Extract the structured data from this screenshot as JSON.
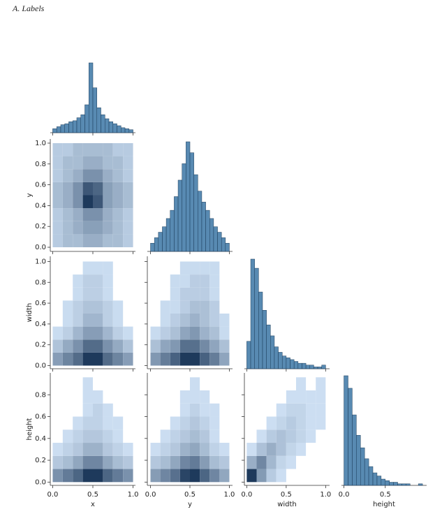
{
  "title": "A.   Labels",
  "chart_data": {
    "type": "pairplot",
    "variables": [
      {
        "label": "x",
        "lim": [
          -0.03,
          1.03
        ],
        "xticks": [
          {
            "value": 0,
            "label": "0.0"
          },
          0.5,
          {
            "value": 1,
            "label": "1.0"
          }
        ],
        "hist": {
          "bins": [
            0,
            0.05,
            0.1,
            0.15,
            0.2,
            0.25,
            0.3,
            0.35,
            0.4,
            0.45,
            0.5,
            0.55,
            0.6,
            0.65,
            0.7,
            0.75,
            0.8,
            0.85,
            0.9,
            0.95,
            1.0
          ],
          "counts": [
            4,
            6,
            8,
            9,
            11,
            12,
            15,
            18,
            28,
            70,
            45,
            25,
            18,
            14,
            11,
            9,
            7,
            5,
            4,
            3
          ]
        },
        "grid": [
          0,
          0.125,
          0.25,
          0.375,
          0.5,
          0.625,
          0.75,
          0.875,
          1.0
        ]
      },
      {
        "label": "y",
        "lim": [
          -0.04,
          1.04
        ],
        "xticks": [
          {
            "value": 0,
            "label": "0.0"
          },
          0.5,
          {
            "value": 1,
            "label": "1.0"
          }
        ],
        "yticks": [
          {
            "value": 0,
            "label": "0.0"
          },
          0.2,
          0.4,
          0.6,
          0.8,
          {
            "value": 1,
            "label": "1.0"
          }
        ],
        "hist": {
          "bins": [
            0,
            0.05,
            0.1,
            0.15,
            0.2,
            0.25,
            0.3,
            0.35,
            0.4,
            0.45,
            0.5,
            0.55,
            0.6,
            0.65,
            0.7,
            0.75,
            0.8,
            0.85,
            0.9,
            0.95,
            1.0
          ],
          "counts": [
            3,
            5,
            7,
            9,
            12,
            15,
            20,
            26,
            32,
            40,
            36,
            28,
            22,
            18,
            15,
            12,
            9,
            7,
            5,
            3
          ]
        },
        "grid": [
          0,
          0.125,
          0.25,
          0.375,
          0.5,
          0.625,
          0.75,
          0.875,
          1.0
        ]
      },
      {
        "label": "width",
        "lim": [
          -0.03,
          1.05
        ],
        "xticks": [
          {
            "value": 0,
            "label": "0.0"
          },
          0.5,
          {
            "value": 1,
            "label": "1.0"
          }
        ],
        "yticks": [
          {
            "value": 0,
            "label": "0.0"
          },
          0.2,
          0.4,
          0.6,
          0.8,
          {
            "value": 1,
            "label": "1.0"
          }
        ],
        "hist": {
          "bins": [
            0,
            0.05,
            0.1,
            0.15,
            0.2,
            0.25,
            0.3,
            0.35,
            0.4,
            0.45,
            0.5,
            0.55,
            0.6,
            0.65,
            0.7,
            0.75,
            0.8,
            0.85,
            0.9,
            0.95,
            1.0
          ],
          "counts": [
            15,
            60,
            55,
            42,
            32,
            24,
            18,
            12,
            9,
            7,
            6,
            5,
            4,
            3,
            3,
            2,
            2,
            1,
            1,
            2
          ]
        },
        "grid": [
          0,
          0.125,
          0.25,
          0.375,
          0.5,
          0.625,
          0.75,
          0.875,
          1.0
        ]
      },
      {
        "label": "height",
        "lim": [
          -0.03,
          1.0
        ],
        "xticks": [
          {
            "value": 0,
            "label": "0.0"
          },
          0.5
        ],
        "yticks": [
          {
            "value": 0,
            "label": "0.0"
          },
          0.2,
          0.4,
          0.6,
          0.8
        ],
        "hist": {
          "bins": [
            0,
            0.05,
            0.1,
            0.15,
            0.2,
            0.25,
            0.3,
            0.35,
            0.4,
            0.45,
            0.5,
            0.55,
            0.6,
            0.65,
            0.7,
            0.75,
            0.8,
            0.85,
            0.9,
            0.95
          ],
          "counts": [
            70,
            62,
            45,
            32,
            24,
            17,
            12,
            8,
            6,
            4,
            3,
            2,
            2,
            1,
            1,
            1,
            0,
            0,
            1
          ]
        },
        "grid": [
          0,
          0.12,
          0.24,
          0.36,
          0.48,
          0.6,
          0.72,
          0.84,
          0.96
        ]
      }
    ],
    "pairs": [
      {
        "xvar": "x",
        "yvar": "y",
        "counts": [
          [
            2,
            3,
            3,
            4,
            4,
            3,
            3,
            2
          ],
          [
            2,
            3,
            4,
            5,
            5,
            4,
            3,
            2
          ],
          [
            2,
            3,
            4,
            6,
            6,
            4,
            3,
            2
          ],
          [
            3,
            4,
            6,
            12,
            10,
            5,
            4,
            3
          ],
          [
            3,
            4,
            6,
            10,
            9,
            5,
            4,
            3
          ],
          [
            2,
            3,
            4,
            6,
            6,
            4,
            3,
            2
          ],
          [
            2,
            3,
            3,
            4,
            4,
            3,
            3,
            2
          ],
          [
            2,
            2,
            3,
            3,
            3,
            3,
            2,
            2
          ]
        ]
      },
      {
        "xvar": "x",
        "yvar": "width",
        "counts": [
          [
            6,
            8,
            10,
            14,
            14,
            10,
            8,
            6
          ],
          [
            3,
            5,
            7,
            10,
            10,
            7,
            5,
            3
          ],
          [
            1,
            2,
            4,
            6,
            6,
            4,
            2,
            1
          ],
          [
            0,
            1,
            2,
            4,
            4,
            2,
            1,
            0
          ],
          [
            0,
            1,
            2,
            3,
            3,
            2,
            1,
            0
          ],
          [
            0,
            0,
            1,
            2,
            2,
            1,
            0,
            0
          ],
          [
            0,
            0,
            1,
            2,
            2,
            1,
            0,
            0
          ],
          [
            0,
            0,
            0,
            1,
            1,
            1,
            0,
            0
          ]
        ]
      },
      {
        "xvar": "y",
        "yvar": "width",
        "counts": [
          [
            6,
            8,
            10,
            13,
            13,
            10,
            8,
            5
          ],
          [
            3,
            5,
            6,
            9,
            9,
            7,
            5,
            3
          ],
          [
            1,
            2,
            3,
            5,
            6,
            4,
            3,
            1
          ],
          [
            0,
            1,
            2,
            3,
            4,
            3,
            2,
            1
          ],
          [
            0,
            1,
            1,
            2,
            3,
            3,
            2,
            0
          ],
          [
            0,
            0,
            1,
            2,
            2,
            2,
            1,
            0
          ],
          [
            0,
            0,
            1,
            1,
            2,
            2,
            1,
            0
          ],
          [
            0,
            0,
            0,
            1,
            1,
            1,
            1,
            0
          ]
        ]
      },
      {
        "xvar": "x",
        "yvar": "height",
        "counts": [
          [
            8,
            10,
            12,
            16,
            16,
            12,
            10,
            8
          ],
          [
            3,
            4,
            6,
            9,
            9,
            6,
            4,
            3
          ],
          [
            1,
            2,
            3,
            5,
            5,
            3,
            2,
            1
          ],
          [
            0,
            1,
            2,
            3,
            3,
            2,
            1,
            0
          ],
          [
            0,
            0,
            1,
            2,
            2,
            1,
            1,
            0
          ],
          [
            0,
            0,
            0,
            1,
            2,
            1,
            0,
            0
          ],
          [
            0,
            0,
            0,
            1,
            1,
            0,
            0,
            0
          ],
          [
            0,
            0,
            0,
            1,
            0,
            0,
            0,
            0
          ]
        ]
      },
      {
        "xvar": "y",
        "yvar": "height",
        "counts": [
          [
            7,
            9,
            11,
            15,
            16,
            12,
            9,
            6
          ],
          [
            3,
            4,
            6,
            9,
            10,
            7,
            4,
            3
          ],
          [
            1,
            2,
            3,
            5,
            6,
            4,
            2,
            1
          ],
          [
            0,
            1,
            2,
            3,
            4,
            3,
            1,
            0
          ],
          [
            0,
            0,
            1,
            2,
            3,
            2,
            1,
            0
          ],
          [
            0,
            0,
            0,
            1,
            2,
            1,
            1,
            0
          ],
          [
            0,
            0,
            0,
            1,
            1,
            1,
            0,
            0
          ],
          [
            0,
            0,
            0,
            0,
            1,
            0,
            0,
            0
          ]
        ]
      },
      {
        "xvar": "width",
        "yvar": "height",
        "counts": [
          [
            18,
            8,
            3,
            1,
            0,
            0,
            0,
            0
          ],
          [
            6,
            10,
            5,
            2,
            1,
            0,
            0,
            0
          ],
          [
            1,
            4,
            6,
            4,
            2,
            1,
            0,
            0
          ],
          [
            0,
            1,
            3,
            4,
            3,
            2,
            1,
            0
          ],
          [
            0,
            0,
            1,
            2,
            3,
            2,
            1,
            1
          ],
          [
            0,
            0,
            0,
            1,
            2,
            2,
            1,
            1
          ],
          [
            0,
            0,
            0,
            0,
            1,
            1,
            1,
            1
          ],
          [
            0,
            0,
            0,
            0,
            0,
            1,
            0,
            1
          ]
        ]
      }
    ],
    "hist_color": "#3b75a5",
    "cmap": [
      "#d6e8fb",
      "#1e3a5c"
    ]
  }
}
